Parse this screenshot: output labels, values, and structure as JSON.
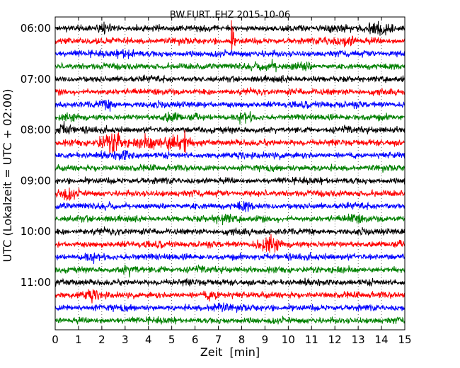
{
  "chart_data": {
    "type": "line",
    "title": "BW.FURT..EHZ 2015-10-06",
    "xlabel": "Zeit  [min]",
    "ylabel": "UTC (Lokalzeit = UTC + 02:00)",
    "xlim": [
      0,
      15
    ],
    "x_ticks": [
      "0",
      "1",
      "2",
      "3",
      "4",
      "5",
      "6",
      "7",
      "8",
      "9",
      "10",
      "11",
      "12",
      "13",
      "14",
      "15"
    ],
    "y_ticks": [
      "06:00",
      "07:00",
      "08:00",
      "09:00",
      "10:00",
      "11:00"
    ],
    "grid": "dotted vertical lines at each minute",
    "trace_interval_minutes": 15,
    "first_trace": "06:00",
    "trace_colors": [
      "#000000",
      "#ff0000",
      "#0000ff",
      "#008000"
    ],
    "traces": [
      {
        "start": "06:00",
        "color": "#000000",
        "events": [
          {
            "minute": 14.0,
            "amplitude": "medium"
          },
          {
            "minute": 13.6,
            "amplitude": "small"
          },
          {
            "minute": 2.1,
            "amplitude": "small"
          }
        ]
      },
      {
        "start": "06:15",
        "color": "#ff0000",
        "events": [
          {
            "minute": 7.6,
            "amplitude": "spike"
          },
          {
            "minute": 12.5,
            "amplitude": "small"
          },
          {
            "minute": 11.7,
            "amplitude": "small"
          }
        ]
      },
      {
        "start": "06:30",
        "color": "#0000ff",
        "events": [
          {
            "minute": 3.1,
            "amplitude": "small"
          }
        ]
      },
      {
        "start": "06:45",
        "color": "#008000",
        "events": [
          {
            "minute": 9.2,
            "amplitude": "small"
          },
          {
            "minute": 10.6,
            "amplitude": "small"
          }
        ]
      },
      {
        "start": "07:00",
        "color": "#000000",
        "events": []
      },
      {
        "start": "07:15",
        "color": "#ff0000",
        "events": []
      },
      {
        "start": "07:30",
        "color": "#0000ff",
        "events": [
          {
            "minute": 2.2,
            "amplitude": "small"
          }
        ]
      },
      {
        "start": "07:45",
        "color": "#008000",
        "events": [
          {
            "minute": 5.0,
            "amplitude": "small"
          },
          {
            "minute": 8.1,
            "amplitude": "small"
          }
        ]
      },
      {
        "start": "08:00",
        "color": "#000000",
        "events": [
          {
            "minute": 0.4,
            "amplitude": "small"
          }
        ]
      },
      {
        "start": "08:15",
        "color": "#ff0000",
        "events": [
          {
            "minute": 2.4,
            "amplitude": "large"
          },
          {
            "minute": 2.75,
            "amplitude": "spike"
          },
          {
            "minute": 4.0,
            "amplitude": "medium"
          },
          {
            "minute": 5.1,
            "amplitude": "large"
          },
          {
            "minute": 5.6,
            "amplitude": "spike"
          }
        ]
      },
      {
        "start": "08:30",
        "color": "#0000ff",
        "events": [
          {
            "minute": 3.0,
            "amplitude": "small"
          }
        ]
      },
      {
        "start": "08:45",
        "color": "#008000",
        "events": []
      },
      {
        "start": "09:00",
        "color": "#000000",
        "events": []
      },
      {
        "start": "09:15",
        "color": "#ff0000",
        "events": [
          {
            "minute": 0.45,
            "amplitude": "medium"
          }
        ]
      },
      {
        "start": "09:30",
        "color": "#0000ff",
        "events": [
          {
            "minute": 8.1,
            "amplitude": "small"
          }
        ]
      },
      {
        "start": "09:45",
        "color": "#008000",
        "events": [
          {
            "minute": 7.2,
            "amplitude": "small"
          },
          {
            "minute": 12.8,
            "amplitude": "small"
          }
        ]
      },
      {
        "start": "10:00",
        "color": "#000000",
        "events": []
      },
      {
        "start": "10:15",
        "color": "#ff0000",
        "events": [
          {
            "minute": 9.1,
            "amplitude": "medium"
          }
        ]
      },
      {
        "start": "10:30",
        "color": "#0000ff",
        "events": [
          {
            "minute": 1.5,
            "amplitude": "small"
          }
        ]
      },
      {
        "start": "10:45",
        "color": "#008000",
        "events": [
          {
            "minute": 3.2,
            "amplitude": "small"
          }
        ]
      },
      {
        "start": "11:00",
        "color": "#000000",
        "events": []
      },
      {
        "start": "11:15",
        "color": "#ff0000",
        "events": [
          {
            "minute": 1.5,
            "amplitude": "small"
          },
          {
            "minute": 6.8,
            "amplitude": "small"
          }
        ]
      },
      {
        "start": "11:30",
        "color": "#0000ff",
        "events": [
          {
            "minute": 7.0,
            "amplitude": "small"
          }
        ]
      },
      {
        "start": "11:45",
        "color": "#008000",
        "events": []
      }
    ]
  }
}
